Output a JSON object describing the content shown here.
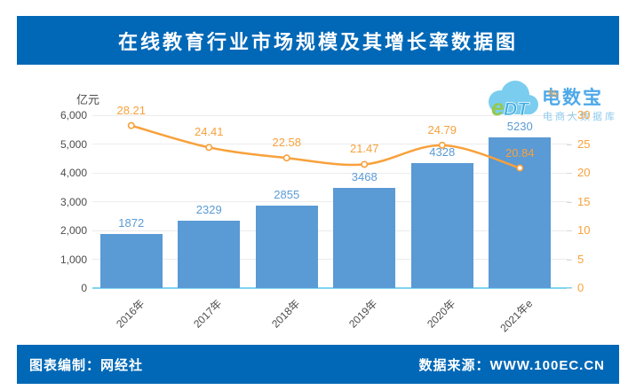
{
  "header": {
    "title": "在线教育行业市场规模及其增长率数据图",
    "banner_color": "#0168B7"
  },
  "watermark": {
    "logo_e": "e",
    "logo_dt": "DT",
    "brand": "电数宝",
    "subtitle": "电商大数据库",
    "cloud_color": "#6FC9EE",
    "brand_color": "#3FA2E9"
  },
  "chart_data": {
    "type": "bar+line combo",
    "title": "在线教育行业市场规模及其增长率数据图",
    "categories": [
      "2016年",
      "2017年",
      "2018年",
      "2019年",
      "2020年",
      "2021年e"
    ],
    "series": [
      {
        "name": "市场规模",
        "type": "bar",
        "axis": "left",
        "color": "#5A9AD5",
        "values": [
          1872,
          2329,
          2855,
          3468,
          4328,
          5230
        ]
      },
      {
        "name": "增长率",
        "type": "line",
        "axis": "right",
        "color": "#F8A13B",
        "values": [
          28.21,
          24.41,
          22.58,
          21.47,
          24.79,
          20.84
        ]
      }
    ],
    "left_axis": {
      "unit": "亿元",
      "min": 0,
      "max": 6000,
      "tick_step": 1000,
      "tick_labels": [
        "0",
        "1,000",
        "2,000",
        "3,000",
        "4,000",
        "5,000",
        "6,000"
      ]
    },
    "right_axis": {
      "unit": "%",
      "min": 0,
      "max": 30,
      "tick_step": 5,
      "tick_labels": [
        "0",
        "5",
        "10",
        "15",
        "20",
        "25",
        "30"
      ]
    },
    "grid": true,
    "legend_position": "none",
    "baseline_color": "#7FD5F2",
    "gridline_color": "#ececec"
  },
  "footer": {
    "left": "图表编制：网经社",
    "right": "数据来源：WWW.100EC.CN"
  }
}
